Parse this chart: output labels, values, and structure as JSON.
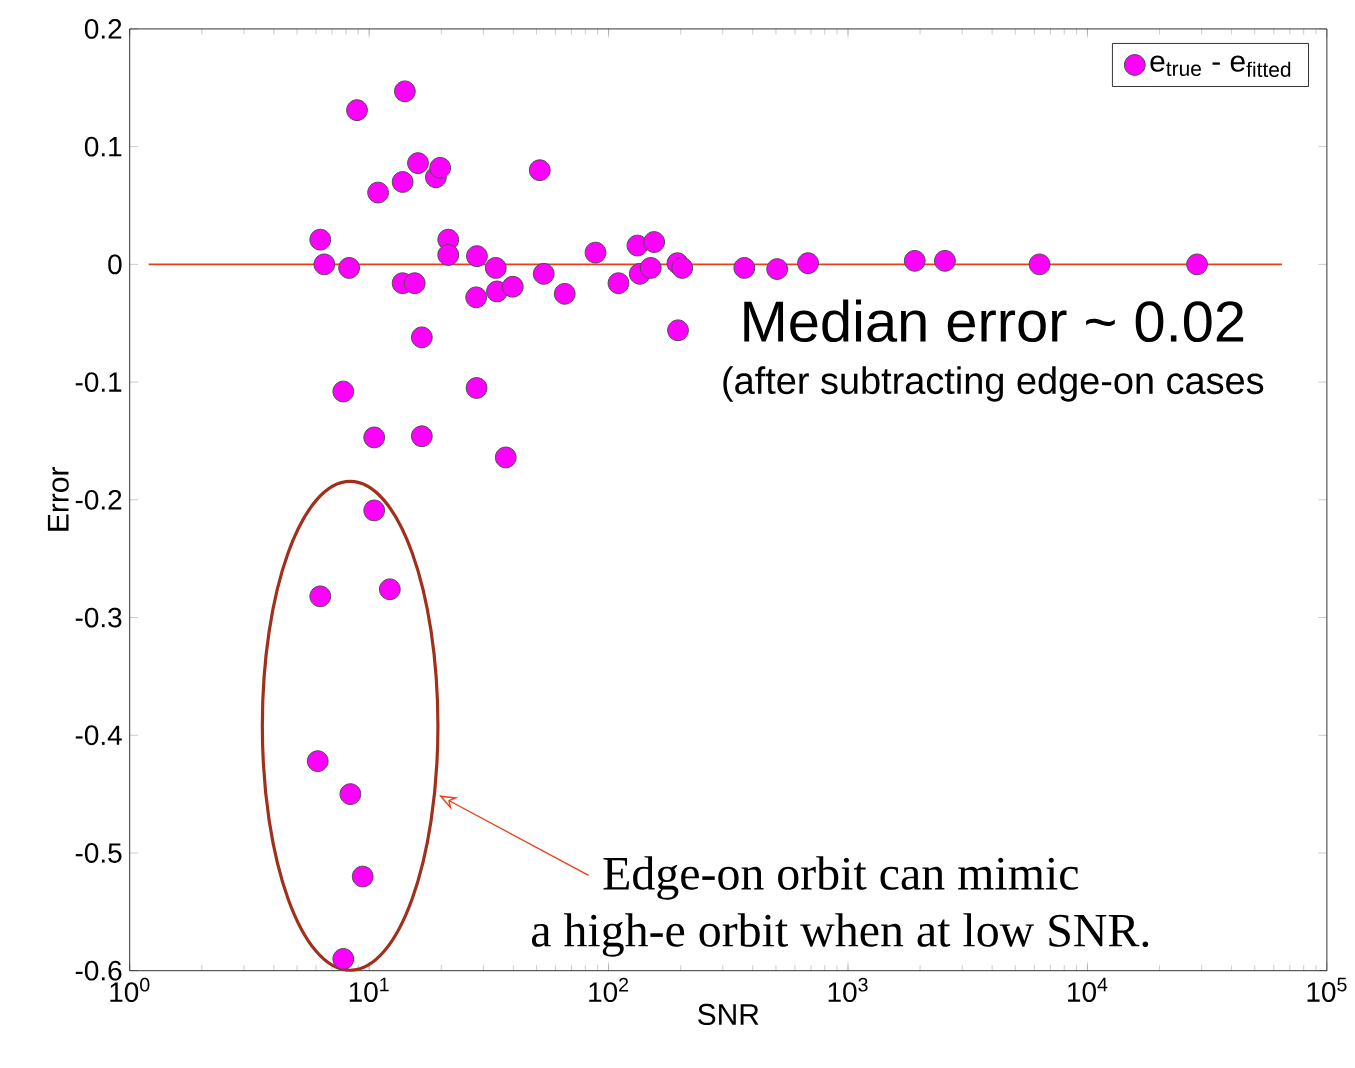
{
  "chart_data": {
    "type": "scatter",
    "xlabel": "SNR",
    "ylabel": "Error",
    "log": "x",
    "xlim": [
      1,
      100000
    ],
    "ylim": [
      -0.6,
      0.2
    ],
    "xticks": [
      {
        "value": 1,
        "label": "10$^{0}$"
      },
      {
        "value": 10,
        "label": "10$^{1}$"
      },
      {
        "value": 100,
        "label": "10$^{2}$"
      },
      {
        "value": 1000,
        "label": "10$^{3}$"
      },
      {
        "value": 10000,
        "label": "10$^{4}$"
      },
      {
        "value": 100000,
        "label": "10$^{5}$"
      }
    ],
    "yticks": [
      -0.6,
      -0.5,
      -0.4,
      -0.3,
      -0.2,
      -0.1,
      0,
      0.1,
      0.2
    ],
    "legend": "top right",
    "grid": false,
    "series": [
      {
        "name": "e$_{true}$ - e$_{fitted}$",
        "color": "#ff00ff",
        "x": [
          8.9,
          14.1,
          10.9,
          13.8,
          16.0,
          19.0,
          19.8,
          51.6,
          6.25,
          6.5,
          8.25,
          21.4,
          21.4,
          28.2,
          33.8,
          13.8,
          15.5,
          28.0,
          34.2,
          39.8,
          53.6,
          65.6,
          88.2,
          110,
          132,
          135,
          155,
          150,
          194,
          203,
          195,
          369,
          506,
          681,
          1900,
          2540,
          6310,
          28700,
          16.6,
          7.8,
          28.1,
          10.5,
          16.6,
          37.2,
          10.5,
          12.2,
          6.25,
          6.1,
          8.35,
          9.4,
          7.8
        ],
        "values": [
          0.131,
          0.147,
          0.061,
          0.07,
          0.086,
          0.074,
          0.082,
          0.08,
          0.021,
          0.0,
          -0.003,
          0.021,
          0.008,
          0.007,
          -0.003,
          -0.016,
          -0.016,
          -0.028,
          -0.023,
          -0.019,
          -0.008,
          -0.025,
          0.01,
          -0.016,
          0.016,
          -0.008,
          0.019,
          -0.003,
          0.001,
          -0.003,
          -0.056,
          -0.003,
          -0.004,
          0.001,
          0.003,
          0.003,
          0.0,
          0.0,
          -0.062,
          -0.108,
          -0.105,
          -0.147,
          -0.146,
          -0.164,
          -0.209,
          -0.276,
          -0.282,
          -0.422,
          -0.45,
          -0.52,
          -0.59
        ]
      }
    ],
    "ref_lines": [
      {
        "axis": "y",
        "value": 0,
        "color": "#e8401c"
      }
    ],
    "annotations": [
      "Median error ~ 0.02",
      "(after subtracting  edge-on cases",
      "Edge-on orbit can mimic",
      "a high-e orbit when at low SNR."
    ]
  }
}
